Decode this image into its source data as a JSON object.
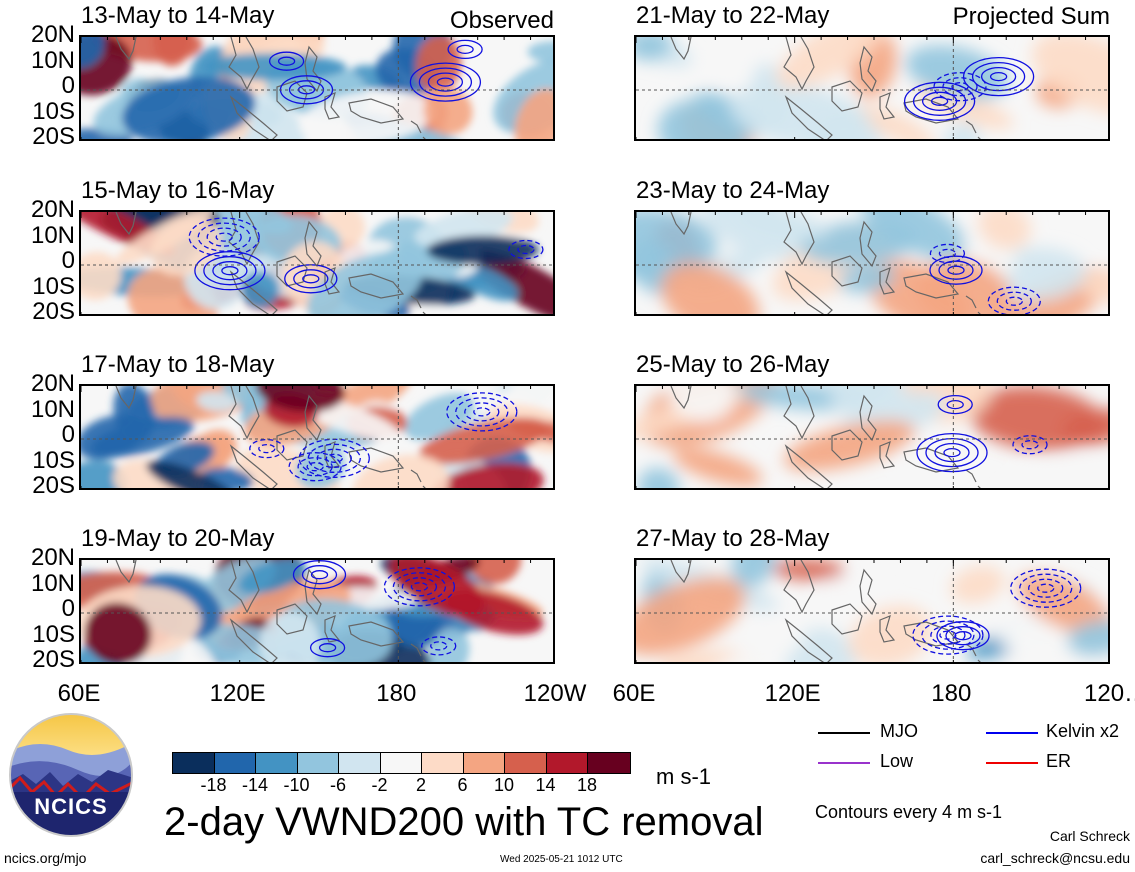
{
  "observed_label": "Observed",
  "projected_label": "Projected Sum",
  "panels_left": [
    {
      "title": "13-May to 14-May"
    },
    {
      "title": "15-May to 16-May"
    },
    {
      "title": "17-May to 18-May"
    },
    {
      "title": "19-May to 20-May"
    }
  ],
  "panels_right": [
    {
      "title": "21-May to 22-May"
    },
    {
      "title": "23-May to 24-May"
    },
    {
      "title": "25-May to 26-May"
    },
    {
      "title": "27-May to 28-May"
    }
  ],
  "lat_labels": [
    "20N",
    "10N",
    "0",
    "10S",
    "20S"
  ],
  "lon_labels": [
    "60E",
    "120E",
    "180",
    "120W"
  ],
  "lon_labels_right": [
    "60E",
    "120E",
    "180",
    "120…"
  ],
  "colorbar": {
    "colors": [
      "#0a2e5c",
      "#2166ac",
      "#4393c3",
      "#92c5de",
      "#d1e5f0",
      "#f7f7f7",
      "#fddbc7",
      "#f4a582",
      "#d6604d",
      "#b2182b",
      "#67001f"
    ],
    "labels": [
      "-18",
      "-14",
      "-10",
      "-6",
      "-2",
      "2",
      "6",
      "10",
      "14",
      "18"
    ],
    "units": "m s-1"
  },
  "legend": {
    "items": [
      {
        "label": "MJO",
        "color": "#000000"
      },
      {
        "label": "Kelvin x2",
        "color": "#0000ee"
      },
      {
        "label": "Low",
        "color": "#9933cc"
      },
      {
        "label": "ER",
        "color": "#ee0000"
      }
    ],
    "contour_note": "Contours every 4 m s-1"
  },
  "main_title": "2-day VWND200 with TC removal",
  "logo_text": "NCICS",
  "footer": {
    "left": "ncics.org/mjo",
    "center": "Wed 2025-05-21 1012 UTC",
    "author": "Carl Schreck",
    "email": "carl_schreck@ncsu.edu"
  }
}
